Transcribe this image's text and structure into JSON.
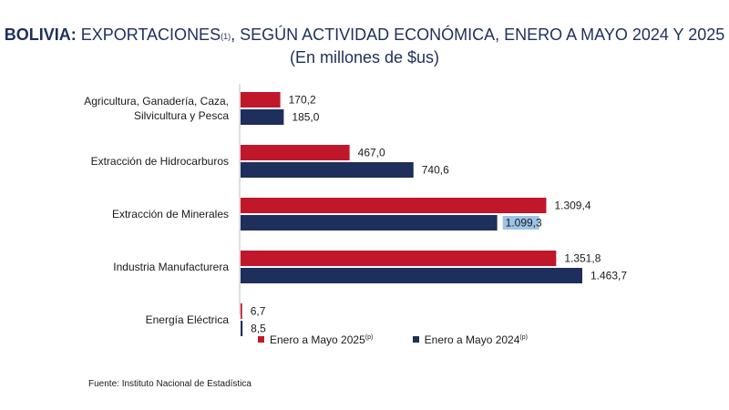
{
  "header": {
    "title_bold": "BOLIVIA:",
    "title_rest": " EXPORTACIONES",
    "title_note": "(1)",
    "title_tail": ", SEGÚN ACTIVIDAD ECONÓMICA, ENERO A MAYO 2024 Y 2025",
    "subtitle": "(En millones de $us)"
  },
  "colors": {
    "series_2025": "#c0172b",
    "series_2024": "#1f2f5c",
    "highlight": "#9dc3e6"
  },
  "chart_data": {
    "type": "bar",
    "orientation": "horizontal",
    "title": "BOLIVIA: EXPORTACIONES(1), SEGÚN ACTIVIDAD ECONÓMICA, ENERO A MAYO 2024 Y 2025",
    "subtitle": "(En millones de $us)",
    "categories": [
      [
        "Agricultura, Ganadería, Caza,",
        "Silvicultura y Pesca"
      ],
      [
        "Extracción de Hidrocarburos"
      ],
      [
        "Extracción de Minerales"
      ],
      [
        "Industria Manufacturera"
      ],
      [
        "Energía Eléctrica"
      ]
    ],
    "series": [
      {
        "name": "Enero a Mayo  2025",
        "note": "(p)",
        "values": [
          170.2,
          467.0,
          1309.4,
          1351.8,
          6.7
        ],
        "labels": [
          "170,2",
          "467,0",
          "1.309,4",
          "1.351,8",
          "6,7"
        ]
      },
      {
        "name": "Enero a Mayo 2024",
        "note": "(p)",
        "values": [
          185.0,
          740.6,
          1099.3,
          1463.7,
          8.5
        ],
        "labels": [
          "185,0",
          "740,6",
          "1.099,3",
          "1.463,7",
          "8,5"
        ]
      }
    ],
    "highlighted_label": {
      "series": 1,
      "category": 2
    },
    "xlim": [
      0,
      1463.7
    ],
    "grid": false,
    "legend_position": "bottom"
  },
  "legend": {
    "item_2025": "Enero a Mayo  2025",
    "item_2025_note": "(p)",
    "item_2024": "Enero a Mayo 2024",
    "item_2024_note": "(p)"
  },
  "footer": {
    "source": "Fuente: Instituto Nacional de Estadística"
  }
}
